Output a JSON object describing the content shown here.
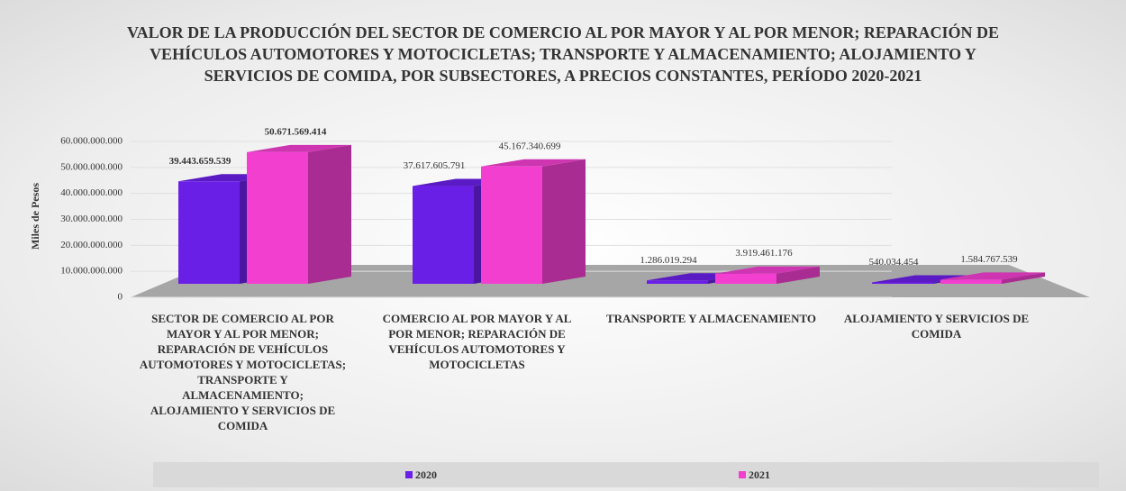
{
  "chart_data": {
    "type": "bar3d",
    "title": "VALOR DE LA PRODUCCIÓN DEL SECTOR DE COMERCIO AL POR MAYOR Y AL POR MENOR; REPARACIÓN DE VEHÍCULOS AUTOMOTORES Y MOTOCICLETAS; TRANSPORTE Y ALMACENAMIENTO; ALOJAMIENTO Y SERVICIOS DE COMIDA, POR SUBSECTORES, A PRECIOS CONSTANTES, PERÍODO 2020-2021",
    "y_label": "Miles de Pesos",
    "categories": [
      "SECTOR DE COMERCIO AL POR MAYOR Y AL POR MENOR; REPARACIÓN DE VEHÍCULOS AUTOMOTORES Y MOTOCICLETAS; TRANSPORTE Y ALMACENAMIENTO; ALOJAMIENTO Y SERVICIOS DE COMIDA",
      "COMERCIO AL POR MAYOR Y AL POR MENOR; REPARACIÓN DE VEHÍCULOS AUTOMOTORES Y MOTOCICLETAS",
      "TRANSPORTE Y ALMACENAMIENTO",
      "ALOJAMIENTO Y SERVICIOS DE COMIDA"
    ],
    "series": [
      {
        "name": "2020",
        "color": "#6a1fe6",
        "values": [
          39443659539,
          37617605791,
          1286019294,
          540034454
        ],
        "value_labels": [
          "39.443.659.539",
          "37.617.605.791",
          "1.286.019.294",
          "540.034.454"
        ]
      },
      {
        "name": "2021",
        "color": "#f23fd0",
        "values": [
          50671569414,
          45167340699,
          3919461176,
          1584767539
        ],
        "value_labels": [
          "50.671.569.414",
          "45.167.340.699",
          "3.919.461.176",
          "1.584.767.539"
        ]
      }
    ],
    "ylim": [
      0,
      60000000000
    ],
    "yticks": [
      0,
      {
        "value": 10000000000,
        "label": "10.000.000.000"
      },
      {
        "value": 20000000000,
        "label": "20.000.000.000"
      },
      {
        "value": 30000000000,
        "label": "30.000.000.000"
      },
      {
        "value": 40000000000,
        "label": "40.000.000.000"
      },
      {
        "value": 50000000000,
        "label": "50.000.000.000"
      },
      {
        "value": 60000000000,
        "label": "60.000.000.000"
      }
    ],
    "grid": true,
    "legend": "bottom"
  }
}
